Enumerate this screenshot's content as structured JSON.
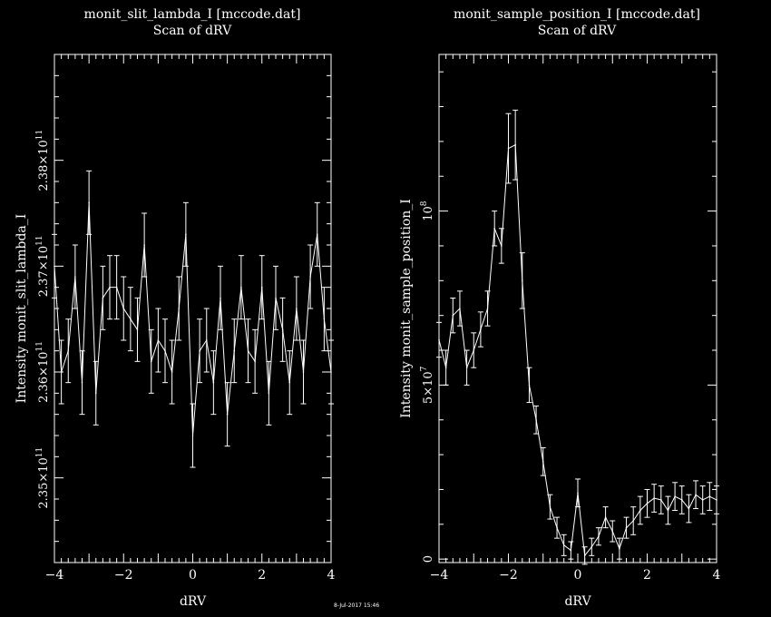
{
  "window": {
    "date_stamp": "8-Jul-2017 15:46"
  },
  "colors": {
    "background": "#000000",
    "foreground": "#ffffff"
  },
  "chart_data": [
    {
      "type": "line",
      "title": "monit_slit_lambda_I [mccode.dat]",
      "subtitle": "Scan of dRV",
      "xlabel": "dRV",
      "ylabel": "Intensity monit_slit_lambda_I",
      "xlim": [
        -4,
        4
      ],
      "ylim": [
        234200000000,
        239000000000
      ],
      "xticks": [
        -4,
        -2,
        0,
        2,
        4
      ],
      "yticks": [
        {
          "value": 235000000000,
          "mantissa": "2.35",
          "exp": "11"
        },
        {
          "value": 236000000000,
          "mantissa": "2.36",
          "exp": "11"
        },
        {
          "value": 237000000000,
          "mantissa": "2.37",
          "exp": "11"
        },
        {
          "value": 238000000000,
          "mantissa": "2.38",
          "exp": "11"
        }
      ],
      "series": [
        {
          "x": [
            -4.0,
            -3.8,
            -3.6,
            -3.4,
            -3.2,
            -3.0,
            -2.8,
            -2.6,
            -2.4,
            -2.2,
            -2.0,
            -1.8,
            -1.6,
            -1.4,
            -1.2,
            -1.0,
            -0.8,
            -0.6,
            -0.4,
            -0.2,
            0.0,
            0.2,
            0.4,
            0.6,
            0.8,
            1.0,
            1.2,
            1.4,
            1.6,
            1.8,
            2.0,
            2.2,
            2.4,
            2.6,
            2.8,
            3.0,
            3.2,
            3.4,
            3.6,
            3.8,
            4.0
          ],
          "y": [
            237000000000,
            236000000000,
            236200000000,
            236900000000,
            235900000000,
            237600000000,
            235800000000,
            236700000000,
            236800000000,
            236800000000,
            236600000000,
            236500000000,
            236400000000,
            237200000000,
            236100000000,
            236300000000,
            236200000000,
            236000000000,
            236600000000,
            237300000000,
            235400000000,
            236200000000,
            236300000000,
            235900000000,
            236700000000,
            235600000000,
            236200000000,
            236800000000,
            236200000000,
            236100000000,
            236800000000,
            235800000000,
            236700000000,
            236400000000,
            235900000000,
            236600000000,
            236000000000,
            236900000000,
            237300000000,
            236500000000,
            236000000000
          ],
          "err": [
            300000000,
            300000000,
            300000000,
            300000000,
            300000000,
            300000000,
            300000000,
            300000000,
            300000000,
            300000000,
            300000000,
            300000000,
            300000000,
            300000000,
            300000000,
            300000000,
            300000000,
            300000000,
            300000000,
            300000000,
            300000000,
            300000000,
            300000000,
            300000000,
            300000000,
            300000000,
            300000000,
            300000000,
            300000000,
            300000000,
            300000000,
            300000000,
            300000000,
            300000000,
            300000000,
            300000000,
            300000000,
            300000000,
            300000000,
            300000000,
            300000000
          ]
        }
      ]
    },
    {
      "type": "line",
      "title": "monit_sample_position_I [mccode.dat]",
      "subtitle": "Scan of dRV",
      "xlabel": "dRV",
      "ylabel": "Intensity monit_sample_position_I",
      "xlim": [
        -4,
        4
      ],
      "ylim": [
        -1000000,
        145000000
      ],
      "xticks": [
        -4,
        -2,
        0,
        2,
        4
      ],
      "yticks": [
        {
          "value": 0,
          "mantissa": "0",
          "exp": ""
        },
        {
          "value": 50000000,
          "mantissa": "5",
          "exp": "7"
        },
        {
          "value": 100000000,
          "mantissa": "",
          "exp": "8"
        }
      ],
      "series": [
        {
          "x": [
            -4.0,
            -3.8,
            -3.6,
            -3.4,
            -3.2,
            -3.0,
            -2.8,
            -2.6,
            -2.4,
            -2.2,
            -2.0,
            -1.8,
            -1.6,
            -1.4,
            -1.2,
            -1.0,
            -0.8,
            -0.6,
            -0.4,
            -0.2,
            0.0,
            0.2,
            0.4,
            0.6,
            0.8,
            1.0,
            1.2,
            1.4,
            1.6,
            1.8,
            2.0,
            2.2,
            2.4,
            2.6,
            2.8,
            3.0,
            3.2,
            3.4,
            3.6,
            3.8,
            4.0
          ],
          "y": [
            63000000,
            55000000,
            70000000,
            72000000,
            55000000,
            60000000,
            66000000,
            72000000,
            95000000,
            90000000,
            118000000,
            119000000,
            80000000,
            50000000,
            40000000,
            28000000,
            15000000,
            9000000,
            4000000,
            2500000,
            19000000,
            1000000,
            3500000,
            6500000,
            12000000,
            8000000,
            3000000,
            9000000,
            11000000,
            14000000,
            16000000,
            17500000,
            17000000,
            14000000,
            18000000,
            17000000,
            14500000,
            18500000,
            17000000,
            18000000,
            17000000
          ],
          "err": [
            5000000,
            5000000,
            5000000,
            5000000,
            5000000,
            5000000,
            5000000,
            5000000,
            5000000,
            5000000,
            10000000,
            10000000,
            8000000,
            5000000,
            4000000,
            4000000,
            3500000,
            3000000,
            3000000,
            2500000,
            4000000,
            2500000,
            2500000,
            2500000,
            3000000,
            3000000,
            3000000,
            3000000,
            4000000,
            4000000,
            4000000,
            4000000,
            4000000,
            4000000,
            4000000,
            4000000,
            4000000,
            4000000,
            4000000,
            4000000,
            4000000
          ]
        }
      ]
    }
  ]
}
